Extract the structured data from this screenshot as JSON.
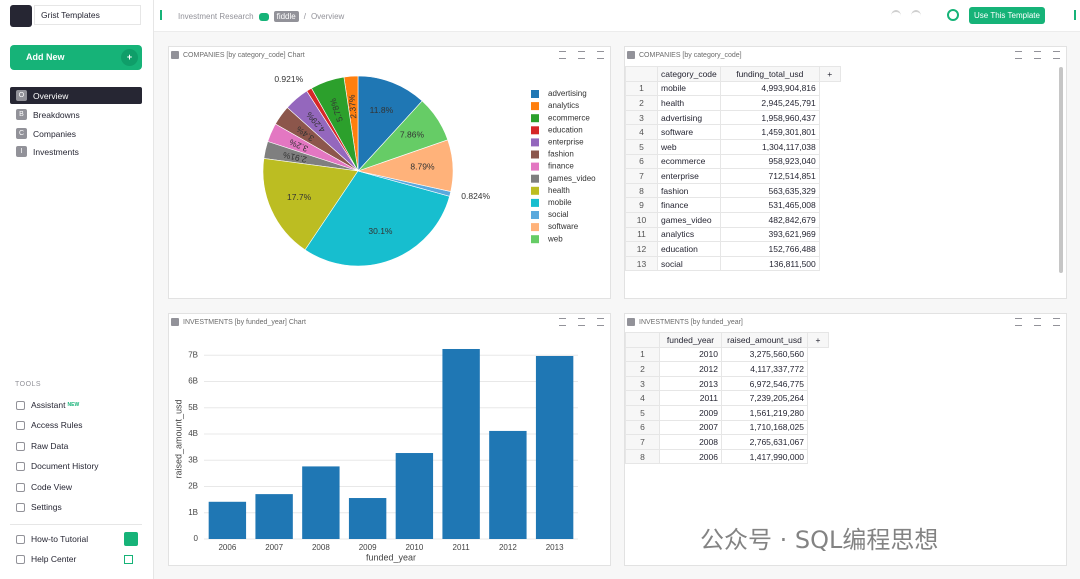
{
  "sidebar": {
    "doc_name": "Grist Templates",
    "add_new": "Add New",
    "pages": [
      {
        "icon": "O",
        "label": "Overview"
      },
      {
        "icon": "B",
        "label": "Breakdowns"
      },
      {
        "icon": "C",
        "label": "Companies"
      },
      {
        "icon": "I",
        "label": "Investments"
      }
    ],
    "tools_heading": "TOOLS",
    "assistant_badge": "NEW",
    "tools": [
      "Assistant",
      "Access Rules",
      "Raw Data",
      "Document History",
      "Code View",
      "Settings"
    ],
    "footer": [
      "How-to Tutorial",
      "Help Center"
    ]
  },
  "header": {
    "breadcrumb": [
      "Investment Research",
      "fiddle",
      "/",
      "Overview"
    ],
    "template_button": "Use This Template"
  },
  "pie_widget": {
    "title": "COMPANIES [by category_code] Chart",
    "chart": {
      "type": "pie",
      "categories": [
        "advertising",
        "analytics",
        "ecommerce",
        "education",
        "enterprise",
        "fashion",
        "finance",
        "games_video",
        "health",
        "mobile",
        "social",
        "software",
        "web"
      ],
      "values": [
        11.8,
        2.37,
        5.78,
        0.921,
        4.29,
        3.4,
        3.2,
        2.91,
        17.7,
        30.1,
        0.824,
        8.79,
        7.86
      ],
      "value_labels": [
        "11.8%",
        "2.37%",
        "5.78%",
        "0.921%",
        "4.29%",
        "3.4%",
        "3.2%",
        "2.91%",
        "17.7%",
        "30.1%",
        "0.824%",
        "8.79%",
        "7.86%"
      ],
      "colors": [
        "#1f77b4",
        "#ff7f0e",
        "#2ca02c",
        "#d62728",
        "#9467bd",
        "#8c564b",
        "#e377c2",
        "#7f7f7f",
        "#bcbd22",
        "#17becf",
        "#5aa9dd",
        "#ffb27a",
        "#66cc66"
      ],
      "legend": "right"
    }
  },
  "companies_table": {
    "title": "COMPANIES [by category_code]",
    "columns": [
      "category_code",
      "funding_total_usd"
    ],
    "row_numbers": [
      1,
      2,
      3,
      4,
      5,
      6,
      7,
      8,
      9,
      10,
      11,
      12,
      13
    ],
    "rows": [
      [
        "mobile",
        "4,993,904,816"
      ],
      [
        "health",
        "2,945,245,791"
      ],
      [
        "advertising",
        "1,958,960,437"
      ],
      [
        "software",
        "1,459,301,801"
      ],
      [
        "web",
        "1,304,117,038"
      ],
      [
        "ecommerce",
        "958,923,040"
      ],
      [
        "enterprise",
        "712,514,851"
      ],
      [
        "fashion",
        "563,635,329"
      ],
      [
        "finance",
        "531,465,008"
      ],
      [
        "games_video",
        "482,842,679"
      ],
      [
        "analytics",
        "393,621,969"
      ],
      [
        "education",
        "152,766,488"
      ],
      [
        "social",
        "136,811,500"
      ]
    ]
  },
  "bar_widget": {
    "title": "INVESTMENTS [by funded_year] Chart",
    "chart": {
      "type": "bar",
      "x_label": "funded_year",
      "y_label": "raised_amount_usd",
      "categories": [
        "2006",
        "2007",
        "2008",
        "2009",
        "2010",
        "2011",
        "2012",
        "2013"
      ],
      "values": [
        1417990000,
        1710168025,
        2765631067,
        1561219280,
        3275560560,
        7239205264,
        4117337772,
        6972546775
      ],
      "color": "#1f77b4",
      "ylim": [
        0,
        7620000000
      ],
      "yticks": [
        0,
        {
          "value": 1000000000,
          "label": "1B"
        },
        {
          "value": 2000000000,
          "label": "2B"
        },
        {
          "value": 3000000000,
          "label": "3B"
        },
        {
          "value": 4000000000,
          "label": "4B"
        },
        {
          "value": 5000000000,
          "label": "5B"
        },
        {
          "value": 6000000000,
          "label": "6B"
        },
        {
          "value": 7000000000,
          "label": "7B"
        }
      ],
      "grid": true
    }
  },
  "investments_table": {
    "title": "INVESTMENTS [by funded_year]",
    "columns": [
      "funded_year",
      "raised_amount_usd"
    ],
    "row_numbers": [
      1,
      2,
      3,
      4,
      5,
      6,
      7,
      8
    ],
    "rows": [
      [
        "2010",
        "3,275,560,560"
      ],
      [
        "2012",
        "4,117,337,772"
      ],
      [
        "2013",
        "6,972,546,775"
      ],
      [
        "2011",
        "7,239,205,264"
      ],
      [
        "2009",
        "1,561,219,280"
      ],
      [
        "2007",
        "1,710,168,025"
      ],
      [
        "2008",
        "2,765,631,067"
      ],
      [
        "2006",
        "1,417,990,000"
      ]
    ]
  },
  "watermark": "公众号 · SQL编程思想"
}
